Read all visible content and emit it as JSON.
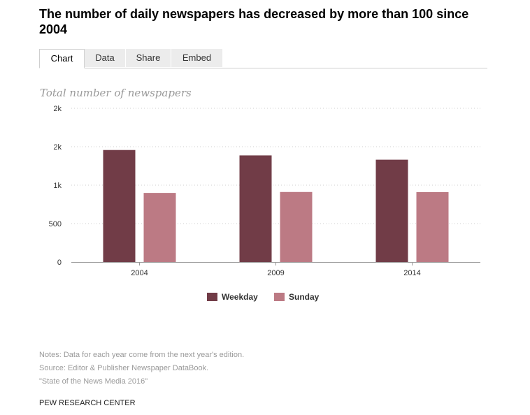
{
  "title": "The number of daily newspapers has decreased by more than 100 since 2004",
  "tabs": [
    {
      "label": "Chart",
      "active": true
    },
    {
      "label": "Data",
      "active": false
    },
    {
      "label": "Share",
      "active": false
    },
    {
      "label": "Embed",
      "active": false
    }
  ],
  "subtitle": "Total number of newspapers",
  "chart_data": {
    "type": "bar",
    "title": "The number of daily newspapers has decreased by more than 100 since 2004",
    "ylabel": "Total number of newspapers",
    "xlabel": "",
    "categories": [
      "2004",
      "2009",
      "2014"
    ],
    "series": [
      {
        "name": "Weekday",
        "color": "#713c47",
        "values": [
          1457,
          1387,
          1331
        ]
      },
      {
        "name": "Sunday",
        "color": "#bc7a84",
        "values": [
          899,
          911,
          909
        ]
      }
    ],
    "ylim": [
      0,
      2000
    ],
    "yticks": [
      0,
      500,
      1000,
      1500,
      2000
    ],
    "ytick_labels": [
      "0",
      "500",
      "1k",
      "2k",
      "2k"
    ],
    "grid": true,
    "legend": "bottom-center"
  },
  "notes": {
    "line1": "Notes: Data for each year come from the next year's edition.",
    "line2": "Source: Editor & Publisher Newspaper DataBook.",
    "line3": "\"State of the News Media 2016\""
  },
  "credit": "PEW RESEARCH CENTER"
}
